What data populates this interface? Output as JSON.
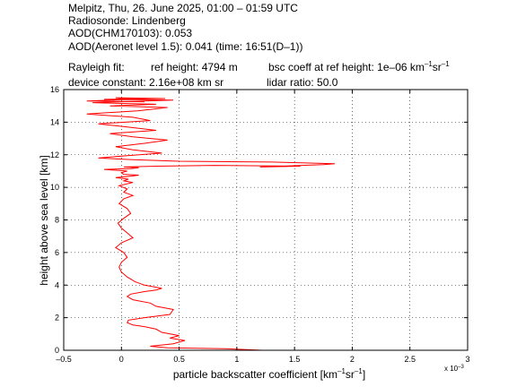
{
  "header": {
    "line1": "Melpitz, Thu, 26. June 2025, 01:00 – 01:59 UTC",
    "line2": "Radiosonde: Lindenberg",
    "line3": "AOD(CHM170103): 0.053",
    "line4": "AOD(Aeronet level 1.5): 0.041   (time: 16:51(D–1))",
    "line5a": "Rayleigh fit:",
    "line5b": "ref height: 4794 m",
    "line5c_pre": "bsc coeff at ref height: 1e–06 km",
    "line5c_sr": "sr",
    "line5c_sup": "–1",
    "line6a": "device constant: 2.16e+08 km sr",
    "line6b": "lidar ratio: 50.0"
  },
  "chart_data": {
    "type": "line",
    "xlabel_main": "particle backscatter coefficient [km",
    "xlabel_sr": "sr",
    "xlabel_end": "]",
    "xlabel_sup": "–1",
    "ylabel": "height above sea level [km]",
    "x_multiplier": "x 10",
    "x_multiplier_exp": "–3",
    "xlim": [
      -0.5,
      3
    ],
    "ylim": [
      0,
      16
    ],
    "xticks": [
      "–0.5",
      "0",
      "0.5",
      "1",
      "1.5",
      "2",
      "2.5",
      "3"
    ],
    "yticks": [
      "0",
      "2",
      "4",
      "6",
      "8",
      "10",
      "12",
      "14",
      "16"
    ],
    "xtick_values": [
      -0.5,
      0,
      0.5,
      1,
      1.5,
      2,
      2.5,
      3
    ],
    "ytick_values": [
      0,
      2,
      4,
      6,
      8,
      10,
      12,
      14,
      16
    ],
    "grid": true,
    "line_color": "#ff0000",
    "series": [
      {
        "x": [
          1.22,
          0.9,
          0.4,
          0.25,
          0.45,
          0.55,
          0.42,
          0.5,
          0.35,
          0.3,
          0.2,
          0.1,
          0.05,
          0.06,
          0.2,
          0.42,
          0.45,
          0.3,
          0.25,
          0.1,
          0.05,
          0.08,
          0.2,
          0.3,
          0.35,
          0.28,
          0.2,
          0.12,
          0.05,
          0.0,
          -0.02,
          0.0,
          0.05,
          0.02,
          -0.05,
          0.0,
          0.1,
          0.05,
          0.0,
          -0.03,
          0.02,
          0.08,
          0.05,
          -0.02,
          0.02,
          0.1,
          0.02,
          0.05,
          -0.02,
          0.1,
          0.02,
          0.06,
          -0.05,
          0.1,
          0.15,
          0.02,
          0.0,
          0.05,
          -0.15,
          0.08,
          0.15,
          0.02,
          0.3,
          0.8,
          1.55,
          1.2,
          1.75,
          1.85,
          1.3,
          0.5,
          0.1,
          -0.2,
          0.05,
          0.35,
          0.1,
          -0.05,
          0.2,
          0.4,
          0.1,
          -0.1,
          0.3,
          0.05,
          -0.2,
          0.25,
          0.1,
          -0.3,
          0.15,
          0.4,
          -0.1,
          0.3,
          -0.25,
          0.2,
          0.45,
          -0.15,
          0.38,
          -0.05,
          0.1,
          -0.3,
          0.2
        ],
        "y": [
          0.0,
          0.1,
          0.15,
          0.25,
          0.4,
          0.6,
          0.75,
          0.9,
          1.1,
          1.3,
          1.45,
          1.55,
          1.7,
          1.85,
          2.0,
          2.2,
          2.5,
          2.7,
          2.9,
          3.1,
          3.3,
          3.45,
          3.6,
          3.7,
          3.8,
          3.9,
          4.0,
          4.2,
          4.5,
          4.8,
          5.1,
          5.4,
          5.7,
          6.0,
          6.3,
          6.6,
          6.9,
          7.2,
          7.5,
          7.8,
          8.1,
          8.4,
          8.7,
          9.0,
          9.3,
          9.5,
          9.7,
          9.9,
          10.1,
          10.3,
          10.4,
          10.5,
          10.6,
          10.7,
          10.75,
          10.8,
          10.9,
          11.0,
          11.1,
          11.15,
          11.2,
          11.25,
          11.3,
          11.35,
          11.3,
          11.25,
          11.4,
          11.45,
          11.55,
          11.6,
          11.7,
          11.8,
          11.95,
          12.1,
          12.3,
          12.5,
          12.7,
          12.9,
          13.1,
          13.3,
          13.5,
          13.7,
          13.9,
          14.1,
          14.3,
          14.5,
          14.7,
          14.9,
          15.0,
          15.1,
          15.2,
          15.3,
          15.35,
          15.4,
          15.45,
          15.5,
          15.4,
          15.3,
          15.25
        ]
      }
    ]
  }
}
